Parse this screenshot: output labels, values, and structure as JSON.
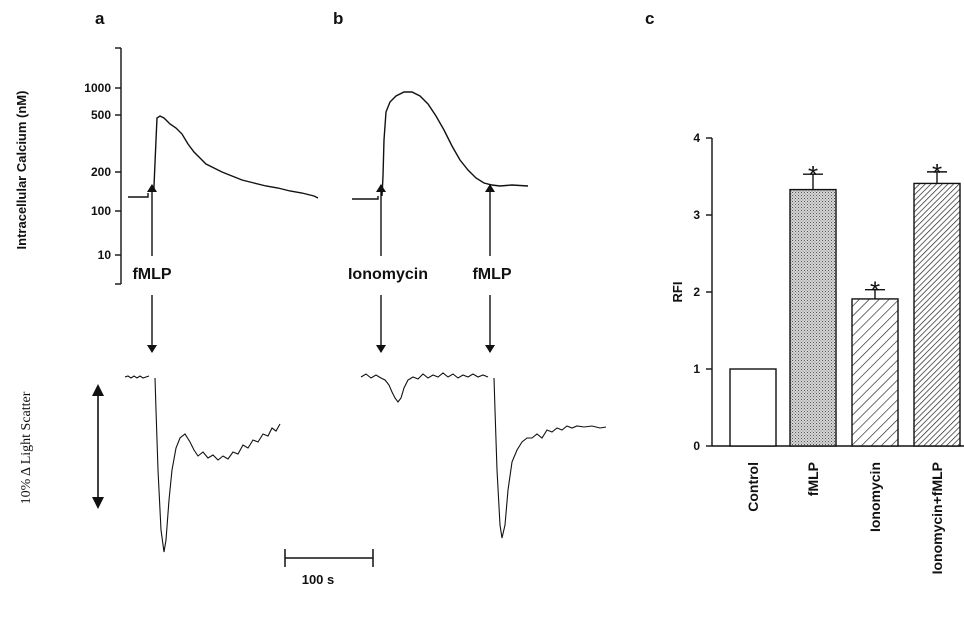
{
  "panels": {
    "a": "a",
    "b": "b",
    "c": "c"
  },
  "traces": {
    "calcium_ylabel": "Intracellular Calcium (nM)",
    "calcium_ticks": [
      "1000",
      "500",
      "200",
      "100",
      "10"
    ],
    "scatter_label": "10% Δ Light Scatter",
    "stimulus_a": "fMLP",
    "stimulus_b1": "Ionomycin",
    "stimulus_b2": "fMLP",
    "scalebar_label": "100 s"
  },
  "chart_data": {
    "type": "bar",
    "title": "",
    "xlabel": "",
    "ylabel": "RFI",
    "ylim": [
      0,
      4
    ],
    "yticks": [
      "0",
      "1",
      "2",
      "3",
      "4"
    ],
    "categories": [
      "Control",
      "fMLP",
      "Ionomycin",
      "Ionomycin+fMLP"
    ],
    "values": [
      1.0,
      3.33,
      1.91,
      3.41
    ],
    "errors": [
      0,
      0.2,
      0.12,
      0.15
    ],
    "significant": [
      false,
      true,
      true,
      true
    ],
    "significance_marker": "*",
    "fills": [
      "empty",
      "dots",
      "hatch-sparse",
      "hatch-dense"
    ]
  }
}
